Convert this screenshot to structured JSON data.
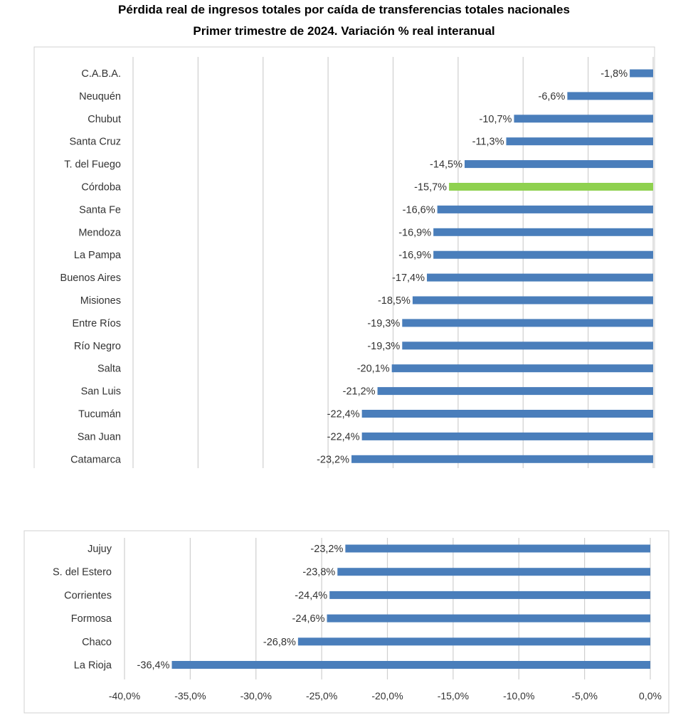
{
  "chart_data": {
    "type": "bar",
    "orientation": "horizontal",
    "title": "Pérdida real de ingresos totales por caída de transferencias totales nacionales",
    "subtitle": "Primer trimestre de 2024. Variación % real interanual",
    "xlim": [
      -40,
      0
    ],
    "x_ticks": [
      "-40,0%",
      "-35,0%",
      "-30,0%",
      "-25,0%",
      "-20,0%",
      "-15,0%",
      "-10,0%",
      "-5,0%",
      "0,0%"
    ],
    "grid": true,
    "colors": {
      "default": "#4a7ebb",
      "highlight": "#8fd14f"
    },
    "panels": [
      {
        "categories": [
          "C.A.B.A.",
          "Neuquén",
          "Chubut",
          "Santa Cruz",
          "T. del Fuego",
          "Córdoba",
          "Santa Fe",
          "Mendoza",
          "La Pampa",
          "Buenos Aires",
          "Misiones",
          "Entre Ríos",
          "Río Negro",
          "Salta",
          "San Luis",
          "Tucumán",
          "San Juan",
          "Catamarca"
        ],
        "values": [
          -1.8,
          -6.6,
          -10.7,
          -11.3,
          -14.5,
          -15.7,
          -16.6,
          -16.9,
          -16.9,
          -17.4,
          -18.5,
          -19.3,
          -19.3,
          -20.1,
          -21.2,
          -22.4,
          -22.4,
          -23.2
        ],
        "labels": [
          "-1,8%",
          "-6,6%",
          "-10,7%",
          "-11,3%",
          "-14,5%",
          "-15,7%",
          "-16,6%",
          "-16,9%",
          "-16,9%",
          "-17,4%",
          "-18,5%",
          "-19,3%",
          "-19,3%",
          "-20,1%",
          "-21,2%",
          "-22,4%",
          "-22,4%",
          "-23,2%"
        ],
        "highlight": [
          "Córdoba"
        ]
      },
      {
        "categories": [
          "Jujuy",
          "S. del Estero",
          "Corrientes",
          "Formosa",
          "Chaco",
          "La Rioja"
        ],
        "values": [
          -23.2,
          -23.8,
          -24.4,
          -24.6,
          -26.8,
          -36.4
        ],
        "labels": [
          "-23,2%",
          "-23,8%",
          "-24,4%",
          "-24,6%",
          "-26,8%",
          "-36,4%"
        ],
        "highlight": []
      }
    ]
  }
}
